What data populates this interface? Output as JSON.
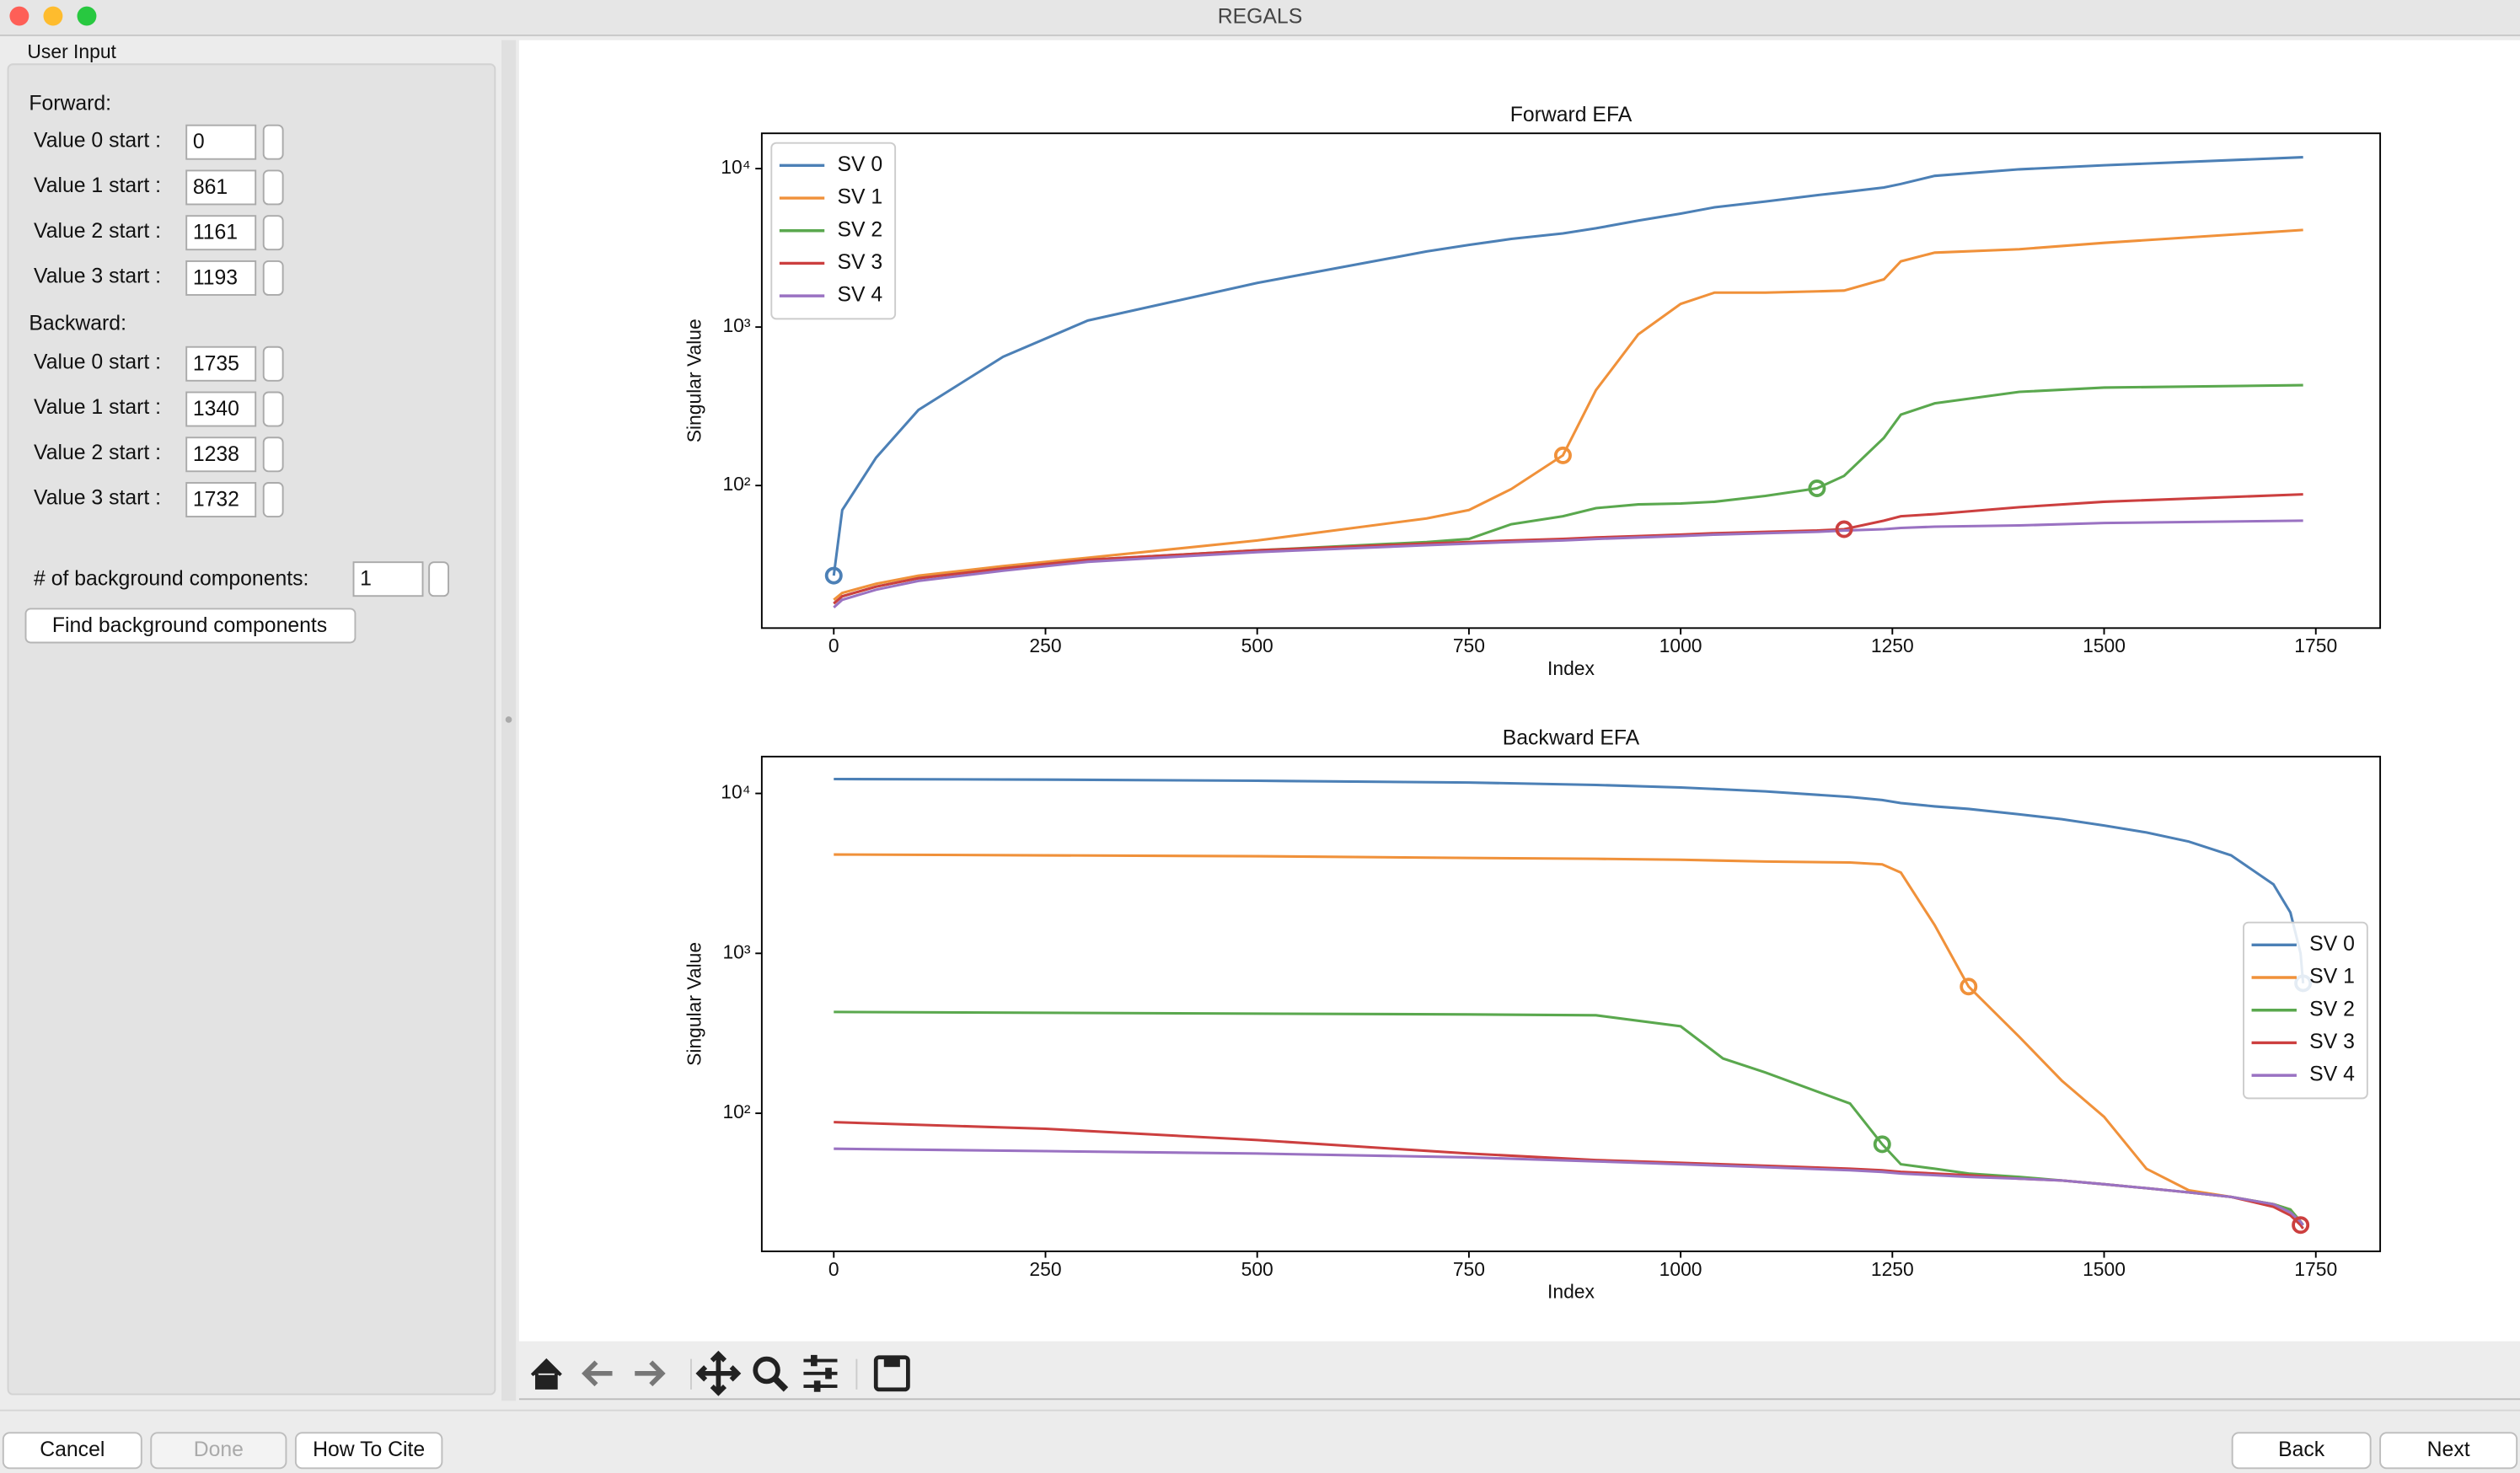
{
  "window": {
    "title": "REGALS"
  },
  "sidebar": {
    "panel_title": "User Input",
    "forward_label": "Forward:",
    "forward": [
      {
        "label": "Value 0 start :",
        "value": 0
      },
      {
        "label": "Value 1 start :",
        "value": 861
      },
      {
        "label": "Value 2 start :",
        "value": 1161
      },
      {
        "label": "Value 3 start :",
        "value": 1193
      }
    ],
    "backward_label": "Backward:",
    "backward": [
      {
        "label": "Value 0 start :",
        "value": 1735
      },
      {
        "label": "Value 1 start :",
        "value": 1340
      },
      {
        "label": "Value 2 start :",
        "value": 1238
      },
      {
        "label": "Value 3 start :",
        "value": 1732
      }
    ],
    "background_label": "# of background components:",
    "background_value": 1,
    "find_button": "Find background components"
  },
  "chart_data": [
    {
      "type": "line",
      "title": "Forward EFA",
      "x_label": "Index",
      "y_label": "Singular Value",
      "log_y": true,
      "legend": "upper left",
      "xlim": [
        -85,
        1826
      ],
      "ylim": [
        12.6,
        16700
      ],
      "xticks": [
        0,
        250,
        500,
        750,
        1000,
        1250,
        1500,
        1750
      ],
      "yticks": [
        {
          "value": 100,
          "label": "10²"
        },
        {
          "value": 1000,
          "label": "10³"
        },
        {
          "value": 10000,
          "label": "10⁴"
        }
      ],
      "x": [
        0,
        10,
        50,
        100,
        200,
        300,
        500,
        700,
        750,
        800,
        861,
        900,
        950,
        1000,
        1040,
        1100,
        1161,
        1193,
        1240,
        1260,
        1300,
        1400,
        1500,
        1735
      ],
      "series": [
        {
          "name": "SV 0",
          "color": "#4c80b6",
          "marker_x": 0,
          "marker_y": 27,
          "values": [
            27,
            70,
            150,
            300,
            650,
            1100,
            1900,
            3000,
            3300,
            3600,
            3900,
            4200,
            4700,
            5200,
            5700,
            6200,
            6800,
            7100,
            7600,
            8000,
            9000,
            9900,
            10500,
            11800
          ]
        },
        {
          "name": "SV 1",
          "color": "#f0913a",
          "marker_x": 861,
          "marker_y": 155,
          "values": [
            19,
            21,
            24,
            27,
            31,
            35,
            45,
            62,
            70,
            95,
            155,
            400,
            900,
            1400,
            1650,
            1650,
            1680,
            1700,
            2000,
            2600,
            2950,
            3100,
            3400,
            4100
          ]
        },
        {
          "name": "SV 2",
          "color": "#5aa84e",
          "marker_x": 1161,
          "marker_y": 96,
          "values": [
            18,
            20,
            23,
            26,
            30,
            34,
            39,
            44,
            46,
            57,
            64,
            72,
            76,
            77,
            79,
            86,
            96,
            115,
            200,
            280,
            330,
            390,
            415,
            430
          ]
        },
        {
          "name": "SV 3",
          "color": "#cc3f3f",
          "marker_x": 1193,
          "marker_y": 53,
          "values": [
            18,
            20,
            23,
            26,
            30,
            34,
            39,
            43,
            44,
            45,
            46,
            47,
            48,
            49,
            50,
            51,
            52,
            53,
            60,
            64,
            66,
            73,
            79,
            88
          ]
        },
        {
          "name": "SV 4",
          "color": "#9a72c2",
          "values": [
            17,
            19,
            22,
            25,
            29,
            33,
            38,
            42,
            43,
            44,
            45,
            46,
            47,
            48,
            49,
            50,
            51,
            52,
            53,
            54,
            55,
            56,
            58,
            60
          ]
        }
      ]
    },
    {
      "type": "line",
      "title": "Backward EFA",
      "x_label": "Index",
      "y_label": "Singular Value",
      "log_y": true,
      "legend": "center right",
      "xlim": [
        -85,
        1826
      ],
      "ylim": [
        13.7,
        17000
      ],
      "xticks": [
        0,
        250,
        500,
        750,
        1000,
        1250,
        1500,
        1750
      ],
      "yticks": [
        {
          "value": 100,
          "label": "10²"
        },
        {
          "value": 1000,
          "label": "10³"
        },
        {
          "value": 10000,
          "label": "10⁴"
        }
      ],
      "x": [
        0,
        250,
        500,
        750,
        900,
        1000,
        1050,
        1100,
        1200,
        1238,
        1260,
        1300,
        1340,
        1400,
        1450,
        1500,
        1550,
        1600,
        1650,
        1700,
        1720,
        1732,
        1735
      ],
      "series": [
        {
          "name": "SV 0",
          "color": "#4c80b6",
          "marker_x": 1735,
          "marker_y": 650,
          "values": [
            12300,
            12200,
            12000,
            11700,
            11300,
            10900,
            10600,
            10300,
            9500,
            9100,
            8700,
            8300,
            8000,
            7400,
            6900,
            6300,
            5700,
            5000,
            4100,
            2700,
            1800,
            1000,
            650
          ]
        },
        {
          "name": "SV 1",
          "color": "#f0913a",
          "marker_x": 1340,
          "marker_y": 620,
          "values": [
            4150,
            4100,
            4050,
            3950,
            3900,
            3850,
            3800,
            3750,
            3700,
            3600,
            3200,
            1500,
            620,
            300,
            160,
            95,
            45,
            33,
            30,
            27,
            25,
            21,
            20
          ]
        },
        {
          "name": "SV 2",
          "color": "#5aa84e",
          "marker_x": 1238,
          "marker_y": 64,
          "values": [
            430,
            425,
            420,
            415,
            410,
            350,
            220,
            180,
            115,
            64,
            48,
            45,
            42,
            40,
            38,
            36,
            34,
            32,
            30,
            27,
            25,
            21,
            20
          ]
        },
        {
          "name": "SV 3",
          "color": "#cc3f3f",
          "marker_x": 1732,
          "marker_y": 20,
          "values": [
            88,
            80,
            68,
            56,
            51,
            49,
            48,
            47,
            45,
            44,
            43,
            42,
            41,
            39,
            38,
            36,
            34,
            32,
            30,
            26,
            23,
            20,
            19
          ]
        },
        {
          "name": "SV 4",
          "color": "#9a72c2",
          "values": [
            60,
            58,
            56,
            53,
            50,
            48,
            47,
            46,
            44,
            43,
            42,
            41,
            40,
            39,
            38,
            36,
            34,
            32,
            30,
            27,
            24,
            21,
            20
          ]
        }
      ]
    }
  ],
  "buttons": {
    "cancel": "Cancel",
    "done": "Done",
    "cite": "How To Cite",
    "back": "Back",
    "next": "Next"
  }
}
